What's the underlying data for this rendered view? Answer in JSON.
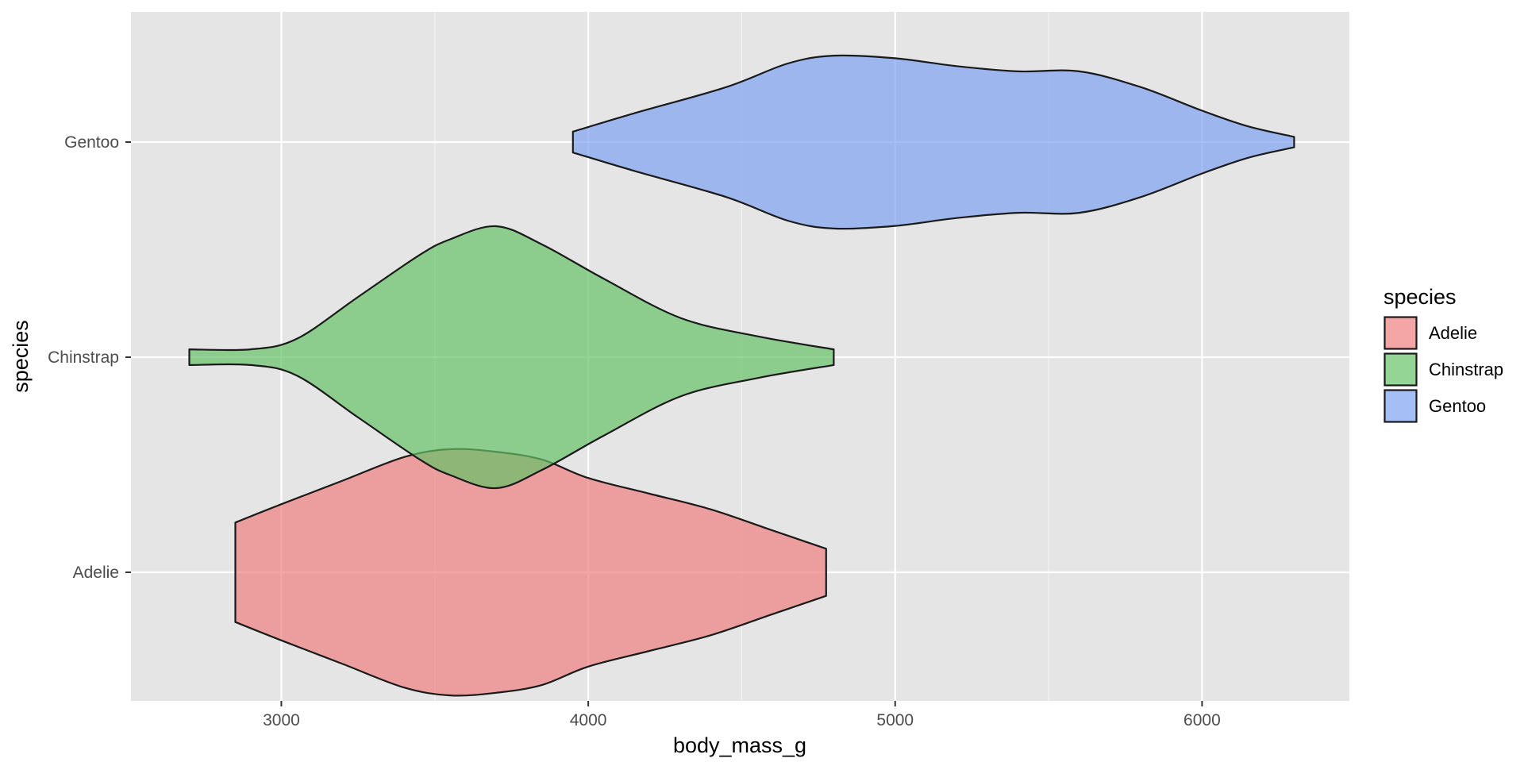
{
  "chart_data": {
    "type": "violin",
    "orientation": "horizontal",
    "title": "",
    "xlabel": "body_mass_g",
    "ylabel": "species",
    "xlim": [
      2510,
      6480
    ],
    "xticks": [
      3000,
      4000,
      5000,
      6000
    ],
    "x_minor_ticks": [
      3500,
      4500,
      5500
    ],
    "categories": [
      "Adelie",
      "Chinstrap",
      "Gentoo"
    ],
    "grid": true,
    "background": "#e5e5e5",
    "legend": {
      "title": "species",
      "position": "right",
      "items": [
        "Adelie",
        "Chinstrap",
        "Gentoo"
      ]
    },
    "series": [
      {
        "category": "Adelie",
        "color": "#f08080",
        "min": 2850,
        "max": 4775,
        "density_profile": [
          [
            2850,
            0.19
          ],
          [
            3000,
            0.26
          ],
          [
            3200,
            0.35
          ],
          [
            3400,
            0.44
          ],
          [
            3550,
            0.47
          ],
          [
            3700,
            0.46
          ],
          [
            3850,
            0.43
          ],
          [
            4000,
            0.36
          ],
          [
            4200,
            0.3
          ],
          [
            4400,
            0.24
          ],
          [
            4600,
            0.16
          ],
          [
            4775,
            0.09
          ]
        ]
      },
      {
        "category": "Chinstrap",
        "color": "#66c266",
        "min": 2700,
        "max": 4800,
        "density_profile": [
          [
            2700,
            0.03
          ],
          [
            2900,
            0.03
          ],
          [
            3050,
            0.07
          ],
          [
            3250,
            0.23
          ],
          [
            3450,
            0.39
          ],
          [
            3550,
            0.45
          ],
          [
            3700,
            0.5
          ],
          [
            3850,
            0.43
          ],
          [
            4050,
            0.3
          ],
          [
            4300,
            0.15
          ],
          [
            4550,
            0.08
          ],
          [
            4800,
            0.03
          ]
        ]
      },
      {
        "category": "Gentoo",
        "color": "#7fa2f2",
        "min": 3950,
        "max": 6300,
        "density_profile": [
          [
            3950,
            0.04
          ],
          [
            4150,
            0.11
          ],
          [
            4450,
            0.21
          ],
          [
            4650,
            0.3
          ],
          [
            4800,
            0.33
          ],
          [
            5000,
            0.32
          ],
          [
            5200,
            0.29
          ],
          [
            5400,
            0.27
          ],
          [
            5600,
            0.27
          ],
          [
            5800,
            0.21
          ],
          [
            6000,
            0.12
          ],
          [
            6150,
            0.06
          ],
          [
            6300,
            0.02
          ]
        ]
      }
    ]
  }
}
